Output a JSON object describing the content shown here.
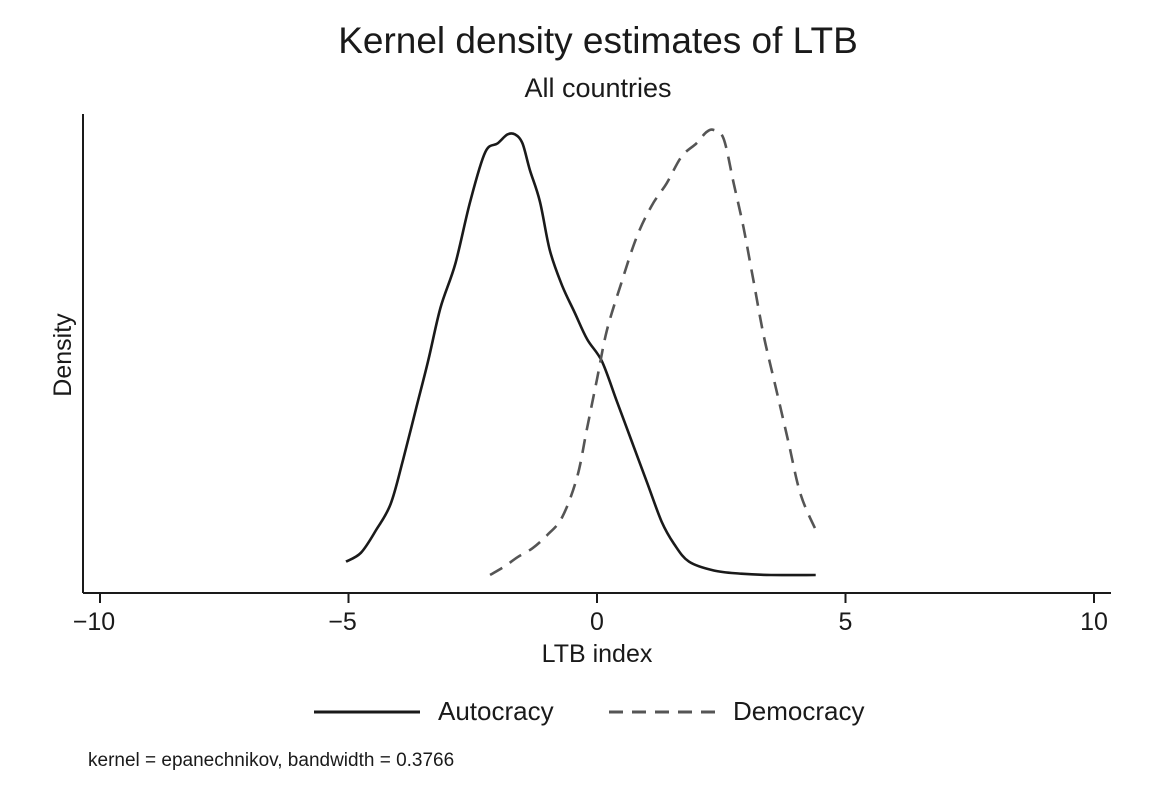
{
  "title": "Kernel density estimates of LTB",
  "subtitle": "All countries",
  "note": "kernel = epanechnikov, bandwidth = 0.3766",
  "axes": {
    "xlabel": "LTB index",
    "ylabel": "Density",
    "xticks": [
      "−10",
      "−5",
      "0",
      "5",
      "10"
    ]
  },
  "legend": {
    "items": [
      {
        "label": "Autocracy",
        "style": "solid",
        "color": "#1a1a1a"
      },
      {
        "label": "Democracy",
        "style": "dashed",
        "color": "#555555"
      }
    ]
  },
  "chart_data": {
    "type": "line",
    "title": "Kernel density estimates of LTB",
    "subtitle": "All countries",
    "xlabel": "LTB index",
    "ylabel": "Density",
    "xlim": [
      -10.3,
      10.3
    ],
    "xticks": [
      -10,
      -5,
      0,
      5,
      10
    ],
    "yticks": [],
    "grid": false,
    "legend_position": "bottom",
    "note": "kernel = epanechnikov, bandwidth = 0.3766",
    "y_units": "relative (no y tick labels shown); values approximate, scaled so Democracy peak = 1.0",
    "series": [
      {
        "name": "Autocracy",
        "style": "solid",
        "color": "#1a1a1a",
        "x": [
          -5.05,
          -4.75,
          -4.45,
          -4.15,
          -3.9,
          -3.65,
          -3.4,
          -3.15,
          -2.85,
          -2.55,
          -2.25,
          -2.0,
          -1.8,
          -1.65,
          -1.5,
          -1.35,
          -1.15,
          -0.95,
          -0.7,
          -0.45,
          -0.2,
          0.1,
          0.4,
          0.7,
          1.0,
          1.3,
          1.55,
          1.85,
          2.35,
          2.9,
          3.5,
          4.4
        ],
        "y": [
          0.03,
          0.05,
          0.1,
          0.16,
          0.26,
          0.37,
          0.48,
          0.6,
          0.7,
          0.84,
          0.95,
          0.97,
          0.99,
          0.99,
          0.97,
          0.91,
          0.84,
          0.73,
          0.65,
          0.59,
          0.53,
          0.48,
          0.39,
          0.3,
          0.21,
          0.12,
          0.07,
          0.03,
          0.01,
          0.003,
          0.0,
          0.0
        ]
      },
      {
        "name": "Democracy",
        "style": "dashed",
        "color": "#555555",
        "x": [
          -2.15,
          -1.85,
          -1.6,
          -1.3,
          -1.0,
          -0.7,
          -0.4,
          -0.2,
          0.0,
          0.2,
          0.5,
          0.8,
          1.1,
          1.4,
          1.7,
          2.0,
          2.2,
          2.35,
          2.55,
          2.75,
          2.95,
          3.15,
          3.35,
          3.6,
          3.85,
          4.1,
          4.45
        ],
        "y": [
          0.0,
          0.02,
          0.04,
          0.06,
          0.09,
          0.13,
          0.22,
          0.33,
          0.44,
          0.55,
          0.66,
          0.76,
          0.83,
          0.88,
          0.94,
          0.97,
          0.995,
          1.0,
          0.98,
          0.88,
          0.78,
          0.66,
          0.54,
          0.42,
          0.3,
          0.18,
          0.09
        ]
      }
    ]
  }
}
